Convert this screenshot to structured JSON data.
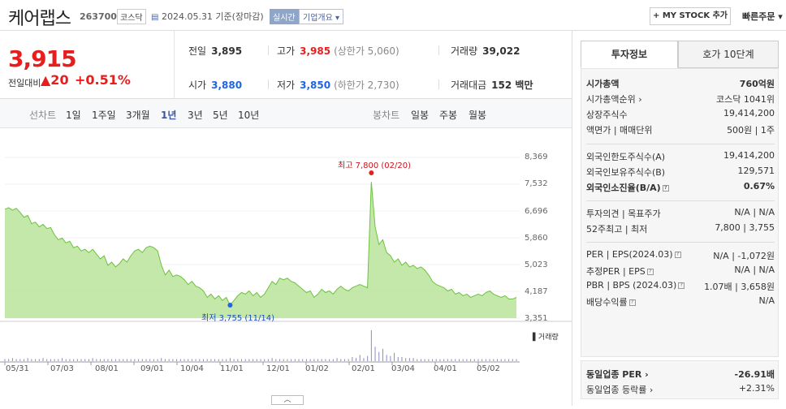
{
  "header": {
    "company": "케어랩스",
    "code": "263700",
    "market": "코스닥",
    "asof": "2024.05.31  기준(장마감)",
    "live": "실시간",
    "corp_info": "기업개요 ▾",
    "mystock": "+ MY STOCK 추가",
    "quick_order": "빠른주문 ▾"
  },
  "quote": {
    "price": "3,915",
    "change_label": "전일대비",
    "change": "▲20",
    "change_pct": "+0.51%",
    "prev_label": "전일",
    "prev": "3,895",
    "high_label": "고가",
    "high": "3,985",
    "upper_limit": "(상한가 5,060)",
    "volume_label": "거래량",
    "volume": "39,022",
    "open_label": "시가",
    "open": "3,880",
    "low_label": "저가",
    "low": "3,850",
    "lower_limit": "(하한가 2,730)",
    "amount_label": "거래대금",
    "amount": "152 백만"
  },
  "chart_tabs": {
    "line_label": "선차트",
    "periods": [
      "1일",
      "1주일",
      "3개월",
      "1년",
      "3년",
      "5년",
      "10년"
    ],
    "selected": "1년",
    "candle_label": "봉차트",
    "candles": [
      "일봉",
      "주봉",
      "월봉"
    ]
  },
  "chart_data": {
    "type": "area",
    "title": "",
    "y_ticks": [
      "8,369",
      "7,532",
      "6,696",
      "5,860",
      "5,023",
      "4,187",
      "3,351"
    ],
    "ylim": [
      3351,
      8369
    ],
    "x_ticks": [
      "05/31",
      "07/03",
      "08/01",
      "09/01",
      "10/04",
      "11/01",
      "12/01",
      "01/02",
      "02/01",
      "03/04",
      "04/01",
      "05/02"
    ],
    "high_annotation": "최고 7,800 (02/20)",
    "low_annotation": "최저 3,755 (11/14)",
    "volume_label": "거래량",
    "series": [
      {
        "values": [
          6750,
          6800,
          6720,
          6780,
          6650,
          6500,
          6560,
          6300,
          6350,
          6200,
          6280,
          6150,
          6180,
          5950,
          5800,
          5850,
          5700,
          5750,
          5550,
          5600,
          5450,
          5500,
          5400,
          5500,
          5350,
          5200,
          5300,
          5000,
          5100,
          4950,
          5050,
          5200,
          5100,
          5300,
          5450,
          5500,
          5400,
          5550,
          5600,
          5550,
          5450,
          5000,
          4700,
          4850,
          4650,
          4700,
          4650,
          4550,
          4400,
          4500,
          4350,
          4300,
          4200,
          4000,
          4100,
          3950,
          4050,
          3900,
          4000,
          3755,
          3900,
          4050,
          4150,
          4100,
          4200,
          4050,
          4150,
          4000,
          4100,
          4300,
          4500,
          4400,
          4600,
          4550,
          4600,
          4500,
          4450,
          4350,
          4250,
          4150,
          4200,
          4000,
          4100,
          4250,
          4150,
          4200,
          4100,
          4250,
          4350,
          4250,
          4200,
          4300,
          4350,
          4400,
          4350,
          4300,
          7600,
          6200,
          5650,
          5800,
          5400,
          5300,
          5100,
          5200,
          5000,
          5100,
          4950,
          5000,
          4900,
          4950,
          4850,
          4700,
          4500,
          4400,
          4350,
          4300,
          4200,
          4250,
          4100,
          4150,
          4050,
          4100,
          4000,
          4050,
          4100,
          4050,
          4150,
          4200,
          4100,
          4050,
          4000,
          4050,
          3950,
          3950,
          4000
        ]
      }
    ],
    "volume": [
      2,
      2,
      3,
      2,
      2,
      2,
      3,
      2,
      2,
      2,
      3,
      2,
      2,
      2,
      2,
      3,
      2,
      2,
      2,
      2,
      2,
      2,
      2,
      3,
      2,
      2,
      2,
      2,
      2,
      2,
      2,
      2,
      2,
      2,
      2,
      2,
      2,
      2,
      2,
      2,
      2,
      3,
      2,
      2,
      2,
      2,
      2,
      2,
      2,
      2,
      2,
      2,
      2,
      2,
      2,
      2,
      2,
      2,
      2,
      3,
      2,
      2,
      2,
      2,
      2,
      2,
      2,
      2,
      2,
      2,
      3,
      2,
      2,
      2,
      2,
      2,
      2,
      2,
      2,
      2,
      2,
      2,
      2,
      2,
      2,
      2,
      2,
      3,
      2,
      2,
      2,
      4,
      3,
      6,
      3,
      5,
      30,
      14,
      9,
      12,
      6,
      5,
      8,
      4,
      4,
      3,
      3,
      3,
      2,
      2,
      2,
      2,
      2,
      2,
      2,
      2,
      2,
      2,
      2,
      2,
      2,
      2,
      2,
      2,
      2,
      2,
      2,
      2,
      2,
      2,
      2,
      2,
      2,
      2,
      2
    ]
  },
  "sidebar": {
    "tab_invest": "투자정보",
    "tab_order": "호가 10단계",
    "rows1": [
      {
        "l": "시가총액",
        "r": "760억원",
        "bold": true
      },
      {
        "l": "시가총액순위 ›",
        "r": "코스닥 1041위"
      },
      {
        "l": "상장주식수",
        "r": "19,414,200"
      },
      {
        "l": "액면가 | 매매단위",
        "r": "500원 | 1주"
      }
    ],
    "rows2": [
      {
        "l": "외국인한도주식수(A)",
        "r": "19,414,200"
      },
      {
        "l": "외국인보유주식수(B)",
        "r": "129,571"
      },
      {
        "l": "외국인소진율(B/A)",
        "r": "0.67%",
        "bold": true
      }
    ],
    "rows3": [
      {
        "l": "투자의견 | 목표주가",
        "r": "N/A | N/A"
      },
      {
        "l": "52주최고 | 최저",
        "r": "7,800 | 3,755"
      }
    ],
    "rows4": [
      {
        "l": "PER | EPS(2024.03)",
        "r": "N/A | -1,072원"
      },
      {
        "l": "추정PER | EPS",
        "r": "N/A | N/A"
      },
      {
        "l": "PBR | BPS (2024.03)",
        "r": "1.07배 | 3,658원"
      },
      {
        "l": "배당수익률",
        "r": "N/A"
      }
    ],
    "rows5": [
      {
        "l": "동일업종 PER ›",
        "r": "-26.91배",
        "bold": true
      },
      {
        "l": "동일업종 등락률 ›",
        "r": "+2.31%",
        "red": true
      }
    ]
  },
  "colors": {
    "up": "#e61e1e",
    "down": "#1e64e6",
    "area": "#b9e49a",
    "line": "#6cc23e"
  }
}
